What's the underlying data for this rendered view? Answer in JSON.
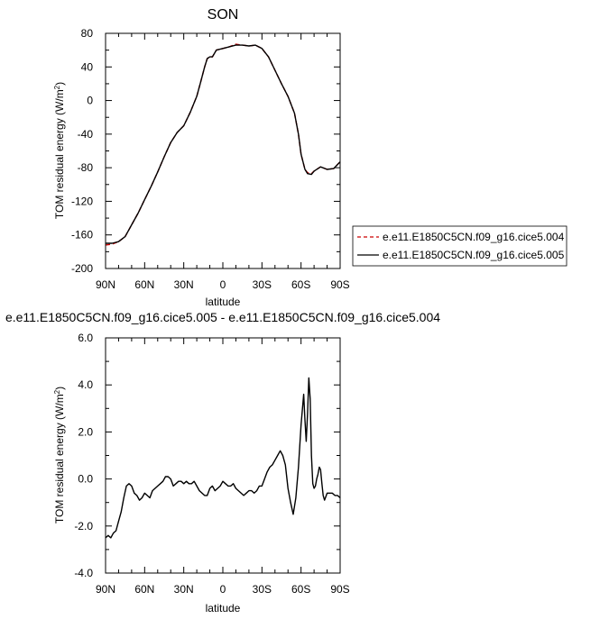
{
  "chart_data": [
    {
      "type": "line",
      "title": "SON",
      "xlabel": "latitude",
      "ylabel": "TOM residual energy (W/m",
      "ylabel_sup": "2",
      "ylabel_tail": ")",
      "xlim": [
        90,
        -90
      ],
      "ylim": [
        -200,
        80
      ],
      "x_ticks": [
        90,
        60,
        30,
        0,
        -30,
        -60,
        -90
      ],
      "x_tick_labels": [
        "90N",
        "60N",
        "30N",
        "0",
        "30S",
        "60S",
        "90S"
      ],
      "y_ticks": [
        80,
        40,
        0,
        -40,
        -80,
        -120,
        -160,
        -200
      ],
      "y_tick_labels": [
        "80",
        "40",
        "0",
        "-40",
        "-80",
        "-120",
        "-160",
        "-200"
      ],
      "legend_position": "right",
      "series": [
        {
          "name": "e.e11.E1850C5CN.f09_g16.cice5.004",
          "color": "#cc0000",
          "dash": "dashed",
          "x": [
            90,
            85,
            80,
            75,
            70,
            65,
            60,
            55,
            50,
            45,
            40,
            35,
            30,
            25,
            20,
            17,
            14,
            12,
            10,
            8,
            5,
            0,
            -5,
            -10,
            -15,
            -20,
            -25,
            -30,
            -35,
            -40,
            -45,
            -50,
            -55,
            -58,
            -60,
            -63,
            -65,
            -68,
            -70,
            -75,
            -80,
            -85,
            -90
          ],
          "y": [
            -172,
            -171,
            -168,
            -162,
            -148,
            -134,
            -118,
            -102,
            -85,
            -67,
            -50,
            -38,
            -30,
            -14,
            5,
            22,
            40,
            50,
            52,
            52,
            60,
            62,
            64,
            67,
            66,
            65,
            66,
            62,
            52,
            36,
            20,
            5,
            -15,
            -40,
            -64,
            -82,
            -86,
            -87,
            -84,
            -79,
            -82,
            -81,
            -73
          ]
        },
        {
          "name": "e.e11.E1850C5CN.f09_g16.cice5.005",
          "color": "#000000",
          "dash": "solid",
          "x": [
            90,
            85,
            80,
            75,
            70,
            65,
            60,
            55,
            50,
            45,
            40,
            35,
            30,
            25,
            20,
            17,
            14,
            12,
            10,
            8,
            5,
            0,
            -5,
            -10,
            -15,
            -20,
            -25,
            -30,
            -35,
            -40,
            -45,
            -50,
            -55,
            -58,
            -60,
            -63,
            -65,
            -68,
            -70,
            -75,
            -80,
            -85,
            -90
          ],
          "y": [
            -170,
            -170,
            -168,
            -162,
            -148,
            -134,
            -118,
            -102,
            -85,
            -67,
            -50,
            -38,
            -30,
            -14,
            5,
            22,
            40,
            50,
            52,
            52,
            60,
            62,
            64,
            66,
            66,
            65,
            66,
            62,
            52,
            36,
            20,
            5,
            -15,
            -40,
            -64,
            -82,
            -87,
            -88,
            -84,
            -79,
            -82,
            -81,
            -73
          ]
        }
      ]
    },
    {
      "type": "line",
      "title": "e.e11.E1850C5CN.f09_g16.cice5.005 - e.e11.E1850C5CN.f09_g16.cice5.004",
      "xlabel": "latitude",
      "ylabel": "TOM residual energy (W/m",
      "ylabel_sup": "2",
      "ylabel_tail": ")",
      "xlim": [
        90,
        -90
      ],
      "ylim": [
        -4,
        6
      ],
      "x_ticks": [
        90,
        60,
        30,
        0,
        -30,
        -60,
        -90
      ],
      "x_tick_labels": [
        "90N",
        "60N",
        "30N",
        "0",
        "30S",
        "60S",
        "90S"
      ],
      "y_ticks": [
        6,
        4,
        2,
        0,
        -2,
        -4
      ],
      "y_tick_labels": [
        "6.0",
        "4.0",
        "2.0",
        "0.0",
        "-2.0",
        "-4.0"
      ],
      "series": [
        {
          "color": "#000000",
          "x": [
            90,
            88,
            86,
            84,
            82,
            80,
            78,
            76,
            74,
            72,
            70,
            68,
            66,
            64,
            62,
            60,
            58,
            56,
            54,
            52,
            50,
            48,
            46,
            44,
            42,
            40,
            38,
            36,
            34,
            32,
            30,
            28,
            26,
            24,
            22,
            20,
            18,
            16,
            14,
            12,
            10,
            8,
            6,
            4,
            2,
            0,
            -2,
            -4,
            -6,
            -8,
            -10,
            -12,
            -14,
            -16,
            -18,
            -20,
            -22,
            -24,
            -26,
            -28,
            -30,
            -32,
            -34,
            -36,
            -38,
            -40,
            -42,
            -44,
            -46,
            -48,
            -50,
            -52,
            -54,
            -56,
            -58,
            -60,
            -62,
            -63,
            -64,
            -65,
            -66,
            -67,
            -68,
            -69,
            -70,
            -71,
            -72,
            -73,
            -74,
            -75,
            -76,
            -77,
            -78,
            -80,
            -82,
            -84,
            -86,
            -88,
            -90
          ],
          "y": [
            -2.5,
            -2.4,
            -2.5,
            -2.3,
            -2.2,
            -1.8,
            -1.4,
            -0.8,
            -0.3,
            -0.2,
            -0.3,
            -0.6,
            -0.7,
            -0.9,
            -0.8,
            -0.6,
            -0.7,
            -0.8,
            -0.5,
            -0.4,
            -0.3,
            -0.2,
            -0.1,
            0.1,
            0.1,
            0.0,
            -0.3,
            -0.2,
            -0.1,
            -0.1,
            -0.2,
            -0.1,
            -0.2,
            -0.2,
            -0.1,
            -0.3,
            -0.5,
            -0.6,
            -0.7,
            -0.7,
            -0.4,
            -0.3,
            -0.5,
            -0.4,
            -0.3,
            -0.1,
            -0.2,
            -0.3,
            -0.3,
            -0.2,
            -0.4,
            -0.5,
            -0.6,
            -0.7,
            -0.6,
            -0.5,
            -0.5,
            -0.6,
            -0.5,
            -0.3,
            -0.3,
            0.0,
            0.3,
            0.5,
            0.6,
            0.8,
            1.0,
            1.2,
            1.0,
            0.6,
            -0.4,
            -1.0,
            -1.5,
            -0.8,
            0.5,
            2.3,
            3.6,
            2.5,
            1.6,
            2.8,
            4.3,
            3.4,
            1.0,
            -0.2,
            -0.4,
            -0.3,
            0.0,
            0.2,
            0.5,
            0.4,
            -0.2,
            -0.7,
            -0.9,
            -0.6,
            -0.6,
            -0.6,
            -0.7,
            -0.7,
            -0.8
          ]
        }
      ]
    }
  ]
}
